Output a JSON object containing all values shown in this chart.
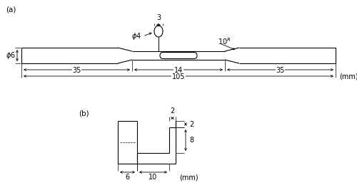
{
  "fig_width": 5.0,
  "fig_height": 2.6,
  "dpi": 100,
  "bg_color": "#ffffff",
  "lc": "#000000",
  "fs": 7.0,
  "label_a": "(a)",
  "label_b": "(b)",
  "units": "(mm)"
}
